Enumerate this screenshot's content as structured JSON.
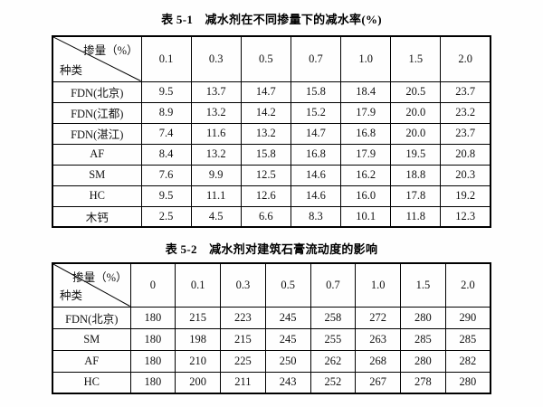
{
  "page": {
    "background": "#fefefe",
    "border_color": "#000000",
    "text_color": "#111111"
  },
  "tables": [
    {
      "title": "表 5-1　减水剂在不同掺量下的减水率(%)",
      "corner": {
        "top_right": "掺量（%）",
        "bottom_left": "种类"
      },
      "columns": [
        "0.1",
        "0.3",
        "0.5",
        "0.7",
        "1.0",
        "1.5",
        "2.0"
      ],
      "rows": [
        {
          "label": "FDN(北京)",
          "values": [
            "9.5",
            "13.7",
            "14.7",
            "15.8",
            "18.4",
            "20.5",
            "23.7"
          ]
        },
        {
          "label": "FDN(江都)",
          "values": [
            "8.9",
            "13.2",
            "14.2",
            "15.2",
            "17.9",
            "20.0",
            "23.2"
          ]
        },
        {
          "label": "FDN(湛江)",
          "values": [
            "7.4",
            "11.6",
            "13.2",
            "14.7",
            "16.8",
            "20.0",
            "23.7"
          ]
        },
        {
          "label": "AF",
          "values": [
            "8.4",
            "13.2",
            "15.8",
            "16.8",
            "17.9",
            "19.5",
            "20.8"
          ]
        },
        {
          "label": "SM",
          "values": [
            "7.6",
            "9.9",
            "12.5",
            "14.6",
            "16.2",
            "18.8",
            "20.3"
          ]
        },
        {
          "label": "HC",
          "values": [
            "9.5",
            "11.1",
            "12.6",
            "14.6",
            "16.0",
            "17.8",
            "19.2"
          ]
        },
        {
          "label": "木钙",
          "values": [
            "2.5",
            "4.5",
            "6.6",
            "8.3",
            "10.1",
            "11.8",
            "12.3"
          ]
        }
      ]
    },
    {
      "title": "表 5-2　减水剂对建筑石膏流动度的影响",
      "corner": {
        "top_right": "掺量（%）",
        "bottom_left": "种类"
      },
      "columns": [
        "0",
        "0.1",
        "0.3",
        "0.5",
        "0.7",
        "1.0",
        "1.5",
        "2.0"
      ],
      "rows": [
        {
          "label": "FDN(北京)",
          "values": [
            "180",
            "215",
            "223",
            "245",
            "258",
            "272",
            "280",
            "290"
          ]
        },
        {
          "label": "SM",
          "values": [
            "180",
            "198",
            "215",
            "245",
            "255",
            "263",
            "285",
            "285"
          ]
        },
        {
          "label": "AF",
          "values": [
            "180",
            "210",
            "225",
            "250",
            "262",
            "268",
            "280",
            "282"
          ]
        },
        {
          "label": "HC",
          "values": [
            "180",
            "200",
            "211",
            "243",
            "252",
            "267",
            "278",
            "280"
          ]
        }
      ]
    }
  ]
}
